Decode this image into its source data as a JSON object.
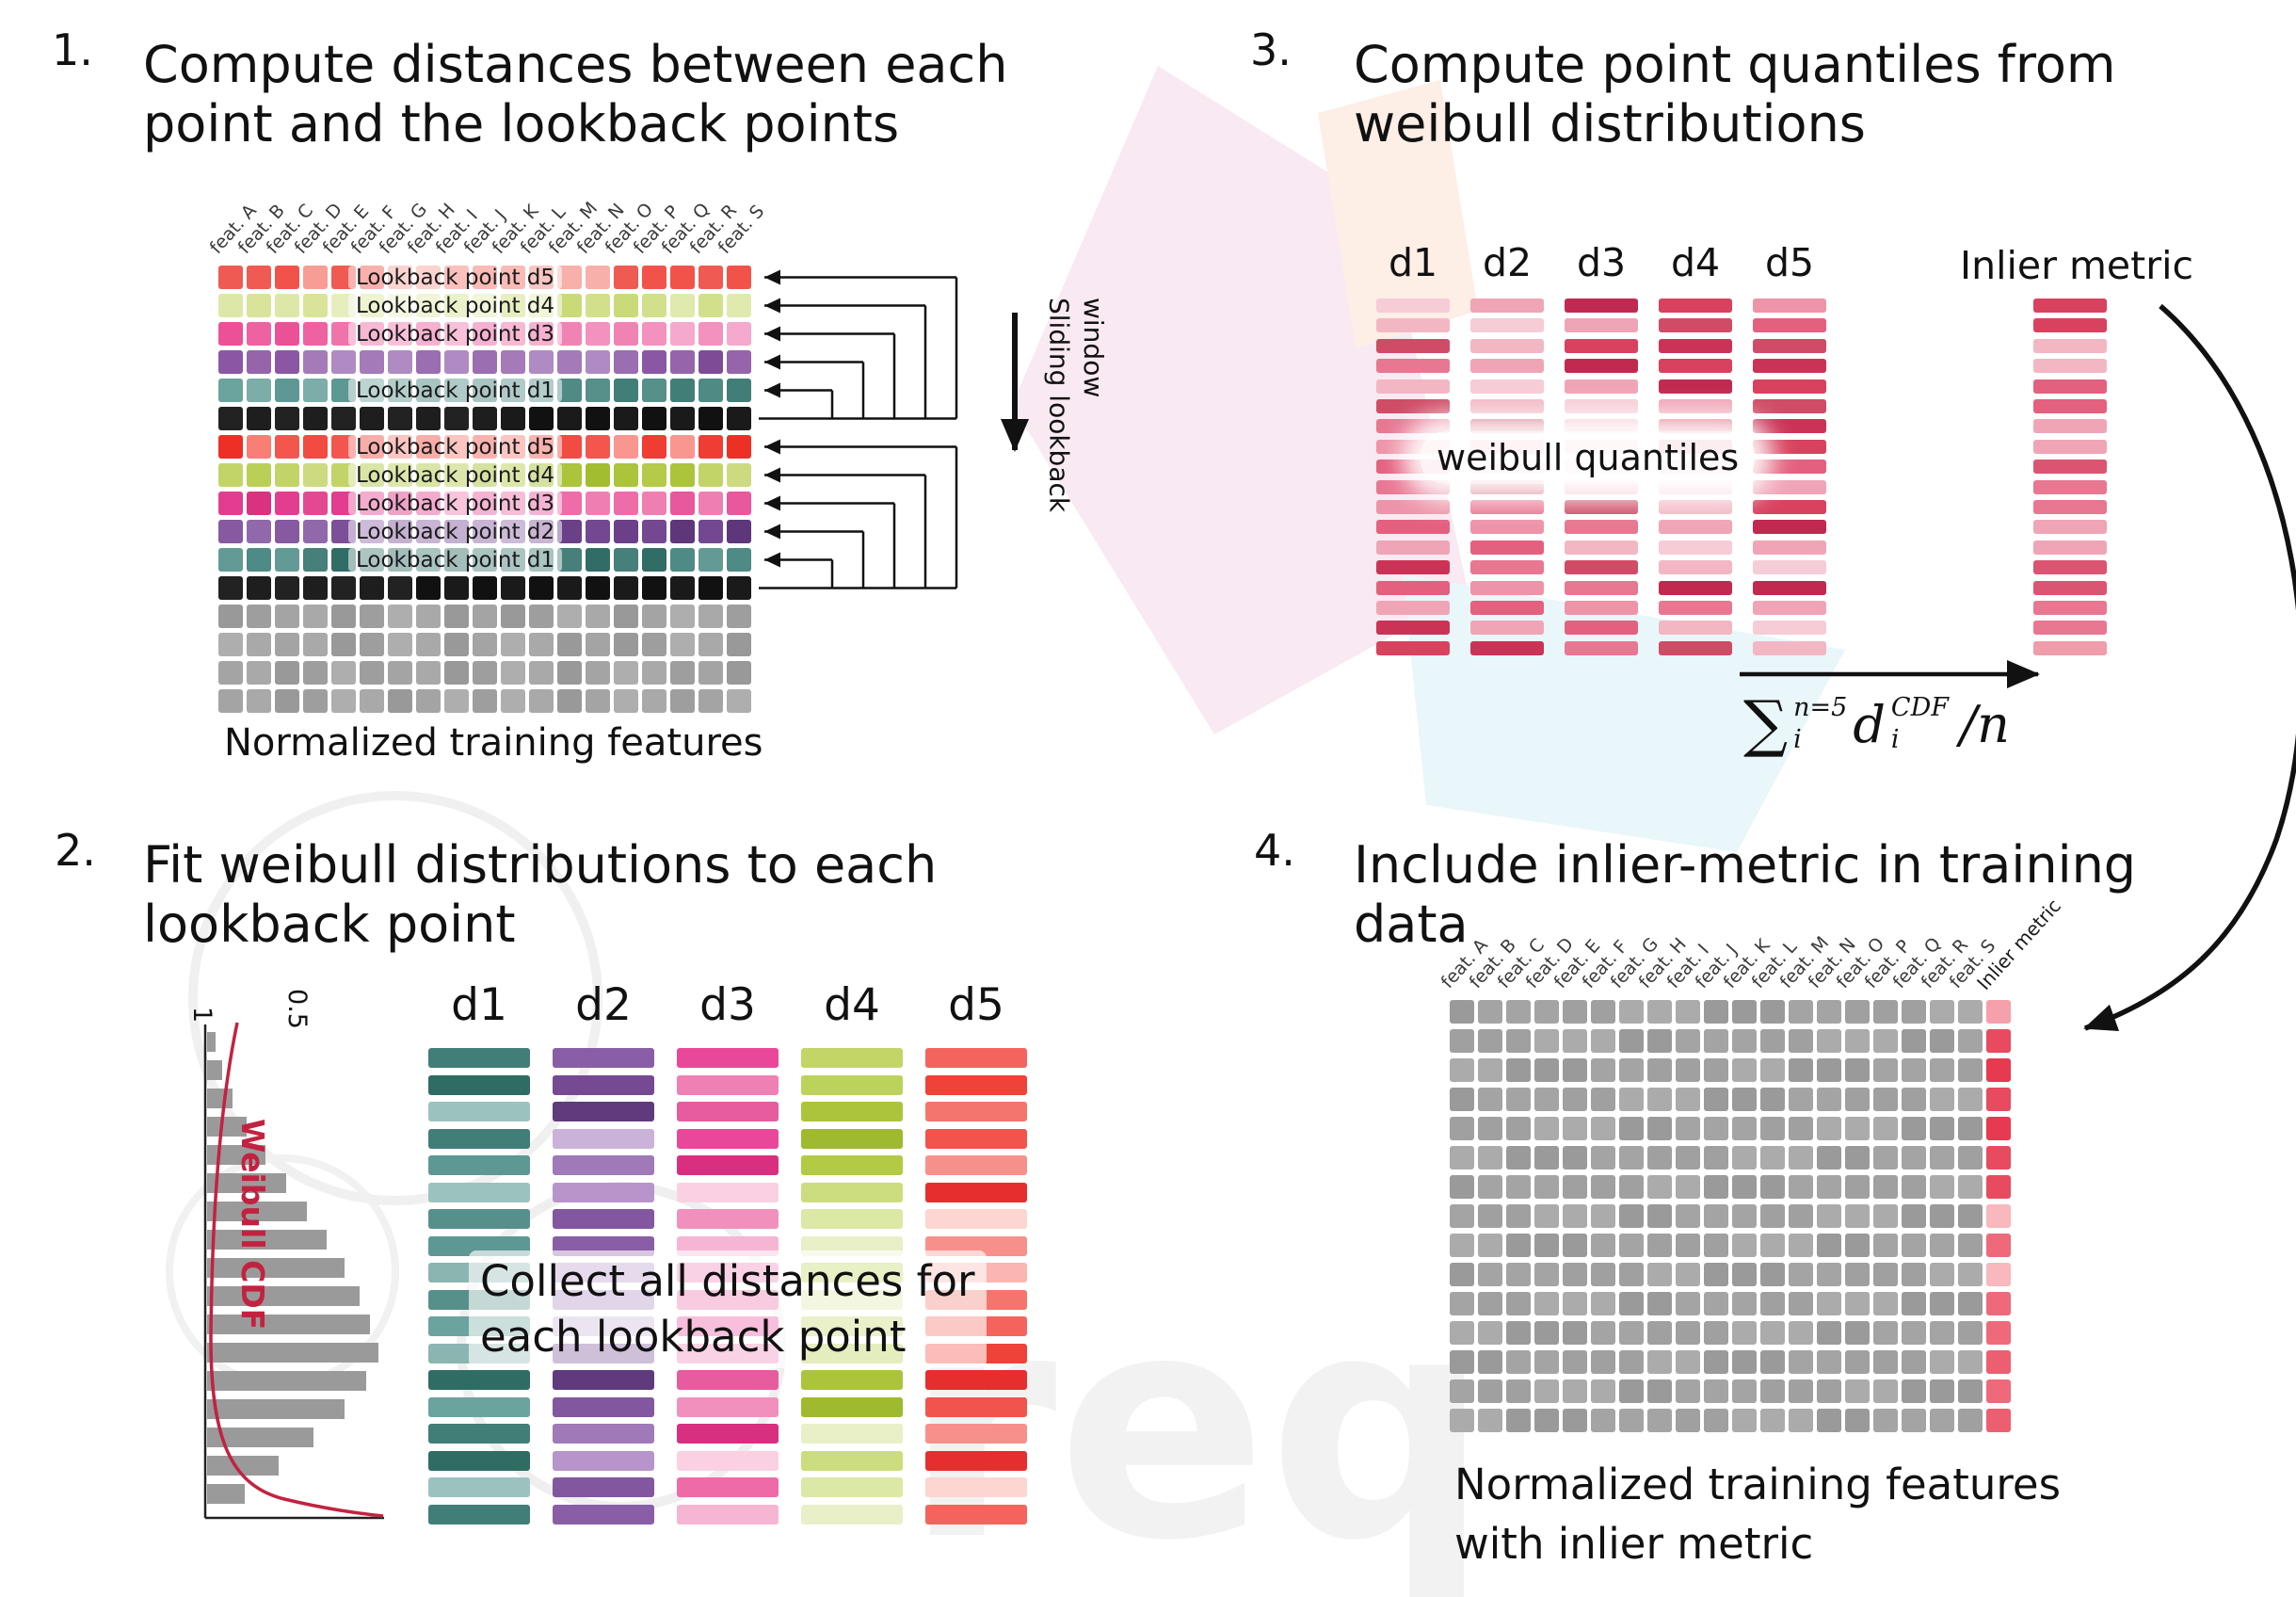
{
  "watermark": {
    "text": "req"
  },
  "palettes": {
    "g1_d5": [
      "#f4736b",
      "#f08078",
      "#ef5a52",
      "#f79d96",
      "#f4665e",
      "#f8b0aa",
      "#f1534b"
    ],
    "g1_d4": [
      "#dde8a8",
      "#d2e08c",
      "#e6eec0",
      "#cbda79",
      "#d9e49a",
      "#e0e9ae"
    ],
    "g1_d3": [
      "#f083b4",
      "#ee62a1",
      "#f5a9cc",
      "#ec5198",
      "#f392be",
      "#ef74ab"
    ],
    "g1_d2": [
      "#9b6db1",
      "#8b57a4",
      "#b08bc3",
      "#7e4c97",
      "#a57ab8",
      "#9564ab"
    ],
    "g1_d1": [
      "#5d9894",
      "#4f8a85",
      "#7cada8",
      "#417e78",
      "#6ba39e",
      "#57908b"
    ],
    "g2_d5": [
      "#f4564e",
      "#ef3d34",
      "#f87e76",
      "#f9968f",
      "#f24b42",
      "#ee2f26"
    ],
    "g2_d4": [
      "#bacf55",
      "#abc43c",
      "#cdda80",
      "#a2bd30",
      "#c2d467",
      "#b4ca48"
    ],
    "g2_d3": [
      "#e9579d",
      "#e23d8e",
      "#ef7fb3",
      "#da3181",
      "#ee6ca8",
      "#e44893"
    ],
    "g2_d2": [
      "#7c5098",
      "#6b4088",
      "#9169ab",
      "#5e367a",
      "#8759a0",
      "#744891"
    ],
    "g2_d1": [
      "#4e8a86",
      "#407c76",
      "#639a95",
      "#316d66",
      "#58918c",
      "#477f7a"
    ],
    "black": [
      "#1a1a1a",
      "#222222",
      "#111111",
      "#1e1e1e"
    ],
    "gray": [
      "#a4a4a4",
      "#999999",
      "#aeaeae",
      "#9e9e9e",
      "#a9a9a9"
    ],
    "p2_d1": [
      "#5d9894",
      "#77a8a4",
      "#9cc2bf",
      "#417e78",
      "#2f6c64",
      "#cfe2e0",
      "#6ba39e",
      "#8bb5b1",
      "#57908b"
    ],
    "p2_d2": [
      "#8a5ea6",
      "#9f79b8",
      "#764a92",
      "#b795ca",
      "#5f3a7c",
      "#a986bf",
      "#8257a0",
      "#cbb2d8"
    ],
    "p2_d3": [
      "#ee6ba7",
      "#f290bd",
      "#e9489a",
      "#f6b5d3",
      "#d92f80",
      "#f07fb4",
      "#fbd0e3",
      "#e65c9f"
    ],
    "p2_d4": [
      "#bcd35b",
      "#cbdd7e",
      "#abc43c",
      "#dce8a6",
      "#9fba2e",
      "#c3d567",
      "#e9efc7",
      "#b2ca44"
    ],
    "p2_d5": [
      "#f4645c",
      "#f7908a",
      "#ef4238",
      "#fbb6b1",
      "#e62e2e",
      "#f4756d",
      "#fdd5d1",
      "#f1544c"
    ],
    "p3_red": [
      "#c22950",
      "#e4607f",
      "#f3b7c4",
      "#d8425f",
      "#ee94a8",
      "#f6ccd6",
      "#cb3356",
      "#e87792",
      "#f0a5b6",
      "#d04c66"
    ],
    "p3_inlier": [
      "#e87792",
      "#ef9cab",
      "#d8425f",
      "#f3b7c4",
      "#e4607f",
      "#f0a5b6",
      "#db5471"
    ],
    "p4_gray": [
      "#a4a4a4",
      "#9a9a9a",
      "#ababab",
      "#a0a0a0"
    ],
    "p4_inlier": [
      "#ee6a7b",
      "#e84b60",
      "#f5a0ab",
      "#ec5f71",
      "#f8b8be",
      "#e63a50",
      "#f28a97"
    ]
  },
  "panel1": {
    "number": "1.",
    "title_l1": "Compute distances between each",
    "title_l2": "point and the lookback points",
    "caption": "Normalized training features",
    "sliding_label": "Sliding lookback\nwindow",
    "features": [
      "feat. A",
      "feat. B",
      "feat. C",
      "feat. D",
      "feat. E",
      "feat. F",
      "feat. G",
      "feat. H",
      "feat. I",
      "feat. J",
      "feat. K",
      "feat. L",
      "feat. M",
      "feat. N",
      "feat. O",
      "feat. P",
      "feat. Q",
      "feat. R",
      "feat. S"
    ],
    "rows": [
      {
        "palette": "g1_d5",
        "label": "Lookback point d5"
      },
      {
        "palette": "g1_d4",
        "label": "Lookback point d4"
      },
      {
        "palette": "g1_d3",
        "label": "Lookback point d3"
      },
      {
        "palette": "g1_d2",
        "label": ""
      },
      {
        "palette": "g1_d1",
        "label": "Lookback point d1"
      },
      {
        "palette": "black",
        "label": ""
      },
      {
        "palette": "g2_d5",
        "label": "Lookback point d5"
      },
      {
        "palette": "g2_d4",
        "label": "Lookback point d4"
      },
      {
        "palette": "g2_d3",
        "label": "Lookback point d3"
      },
      {
        "palette": "g2_d2",
        "label": "Lookback point d2"
      },
      {
        "palette": "g2_d1",
        "label": "Lookback point d1"
      },
      {
        "palette": "black",
        "label": ""
      },
      {
        "palette": "gray",
        "label": ""
      },
      {
        "palette": "gray",
        "label": ""
      },
      {
        "palette": "gray",
        "label": ""
      },
      {
        "palette": "gray",
        "label": ""
      }
    ]
  },
  "panel2": {
    "number": "2.",
    "title_l1": "Fit weibull distributions to each",
    "title_l2": "lookback point",
    "cdf_label": "Weibull CDF",
    "tick_top": "1",
    "tick_mid": "0.5",
    "overlay_l1": "Collect all distances for",
    "overlay_l2": "each lookback point",
    "bars_per_column": 18,
    "hist": [
      0.05,
      0.09,
      0.15,
      0.23,
      0.34,
      0.46,
      0.58,
      0.7,
      0.8,
      0.89,
      0.95,
      1.0,
      0.93,
      0.8,
      0.62,
      0.42,
      0.22
    ],
    "columns": [
      {
        "label": "d1",
        "palette": "p2_d1"
      },
      {
        "label": "d2",
        "palette": "p2_d2"
      },
      {
        "label": "d3",
        "palette": "p2_d3"
      },
      {
        "label": "d4",
        "palette": "p2_d4"
      },
      {
        "label": "d5",
        "palette": "p2_d5"
      }
    ]
  },
  "panel3": {
    "number": "3.",
    "title_l1": "Compute point quantiles from",
    "title_l2": "weibull distributions",
    "columns": [
      "d1",
      "d2",
      "d3",
      "d4",
      "d5"
    ],
    "bars_per_column": 18,
    "quantiles_label": "weibull quantiles",
    "inlier_label": "Inlier metric",
    "formula": {
      "sum": "∑",
      "sup": "n=5",
      "sub": "i",
      "var": "d",
      "var_sup": "CDF",
      "var_sub": "i",
      "div": "/n"
    }
  },
  "panel4": {
    "number": "4.",
    "title_l1": "Include inlier-metric in training",
    "title_l2": "data",
    "caption_l1": "Normalized training features",
    "caption_l2": "with inlier metric",
    "inlier_label": "Inlier metric",
    "rows": 15,
    "features": [
      "feat. A",
      "feat. B",
      "feat. C",
      "feat. D",
      "feat. E",
      "feat. F",
      "feat. G",
      "feat. H",
      "feat. I",
      "feat. J",
      "feat. K",
      "feat. L",
      "feat. M",
      "feat. N",
      "feat. O",
      "feat. P",
      "feat. Q",
      "feat. R",
      "feat. S"
    ]
  }
}
